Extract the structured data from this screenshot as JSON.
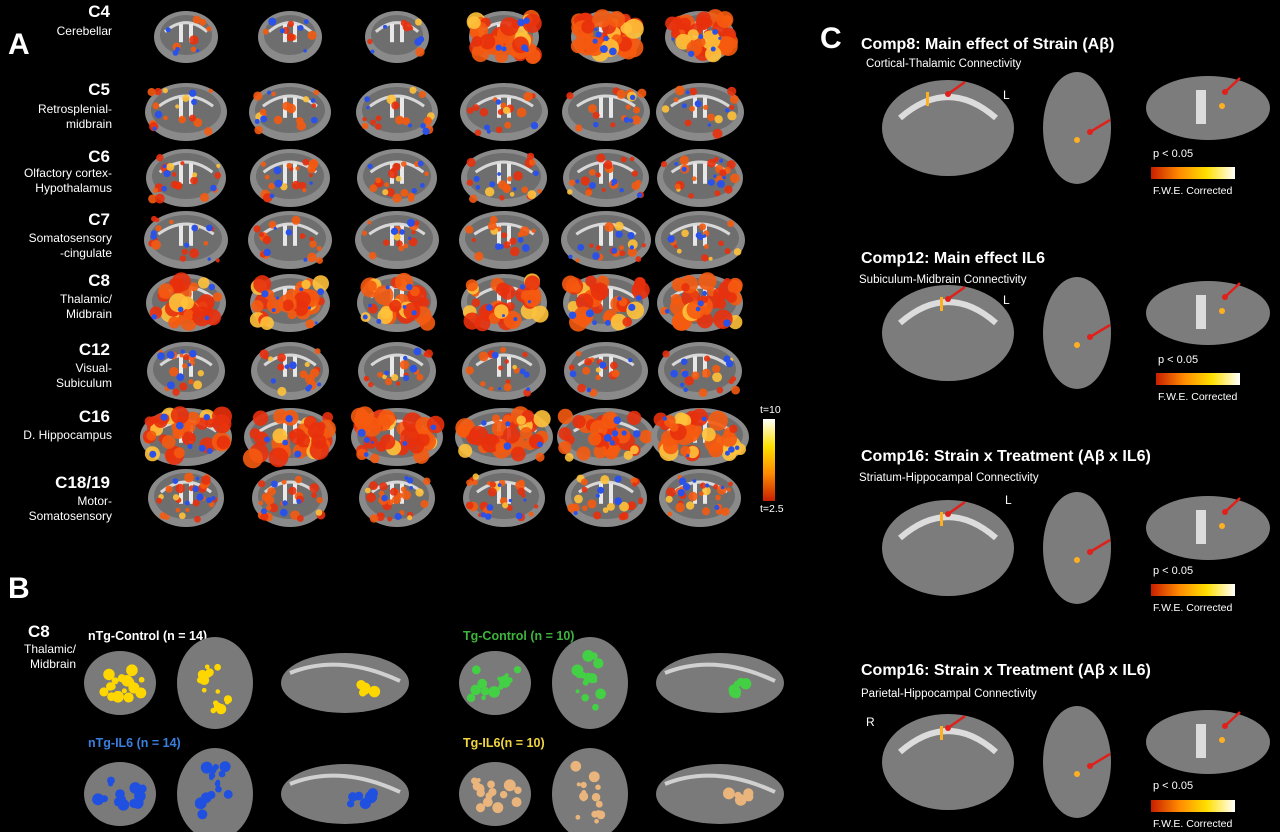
{
  "panels": {
    "a": "A",
    "b": "B",
    "c": "C"
  },
  "panel_a": {
    "rows": [
      {
        "code": "C4",
        "desc": "Cerebellar"
      },
      {
        "code": "C5",
        "desc": "Retrosplenial-\nmidbrain"
      },
      {
        "code": "C6",
        "desc": "Olfactory cortex-\nHypothalamus"
      },
      {
        "code": "C7",
        "desc": "Somatosensory\n-cingulate"
      },
      {
        "code": "C8",
        "desc": "Thalamic/\nMidbrain"
      },
      {
        "code": "C12",
        "desc": "Visual-\nSubiculum"
      },
      {
        "code": "C16",
        "desc": "D. Hippocampus"
      },
      {
        "code": "C18/19",
        "desc": "Motor-\nSomatosensory"
      }
    ],
    "colorbar": {
      "top": "t=10",
      "bottom": "t=2.5"
    }
  },
  "panel_b": {
    "component": "C8",
    "component_desc": "Thalamic/\nMidbrain",
    "groups": [
      {
        "label": "nTg-Control (n = 14)",
        "color": "#ffffff"
      },
      {
        "label": "Tg-Control (n = 10)",
        "color": "#3db53d"
      },
      {
        "label": "nTg-IL6 (n = 14)",
        "color": "#3a7fe0"
      },
      {
        "label": "Tg-IL6(n = 10)",
        "color": "#f2d640"
      }
    ]
  },
  "panel_c": {
    "sections": [
      {
        "title": "Comp8: Main effect of Strain (Aβ)",
        "subtitle": "Cortical-Thalamic  Connectivity",
        "side": "L",
        "p": "p < 0.05",
        "fwe": "F.W.E. Corrected"
      },
      {
        "title": "Comp12: Main effect IL6",
        "subtitle": "Subiculum-Midbrain  Connectivity",
        "side": "L",
        "p": "p < 0.05",
        "fwe": "F.W.E. Corrected"
      },
      {
        "title": "Comp16: Strain x Treatment (Aβ x IL6)",
        "subtitle": "Striatum-Hippocampal  Connectivity",
        "side": "L",
        "p": "p < 0.05",
        "fwe": "F.W.E. Corrected"
      },
      {
        "title": "Comp16: Strain x Treatment (Aβ x IL6)",
        "subtitle": "Parietal-Hippocampal  Connectivity",
        "side": "R",
        "p": "p < 0.05",
        "fwe": "F.W.E. Corrected"
      }
    ]
  },
  "colors": {
    "hot": "#e8300c",
    "warm": "#ff9a10",
    "yellow": "#ffe84a",
    "blue": "#2b52e8",
    "green": "#3ec23e",
    "tan": "#e8b07a",
    "arrow": "#e0201a"
  }
}
